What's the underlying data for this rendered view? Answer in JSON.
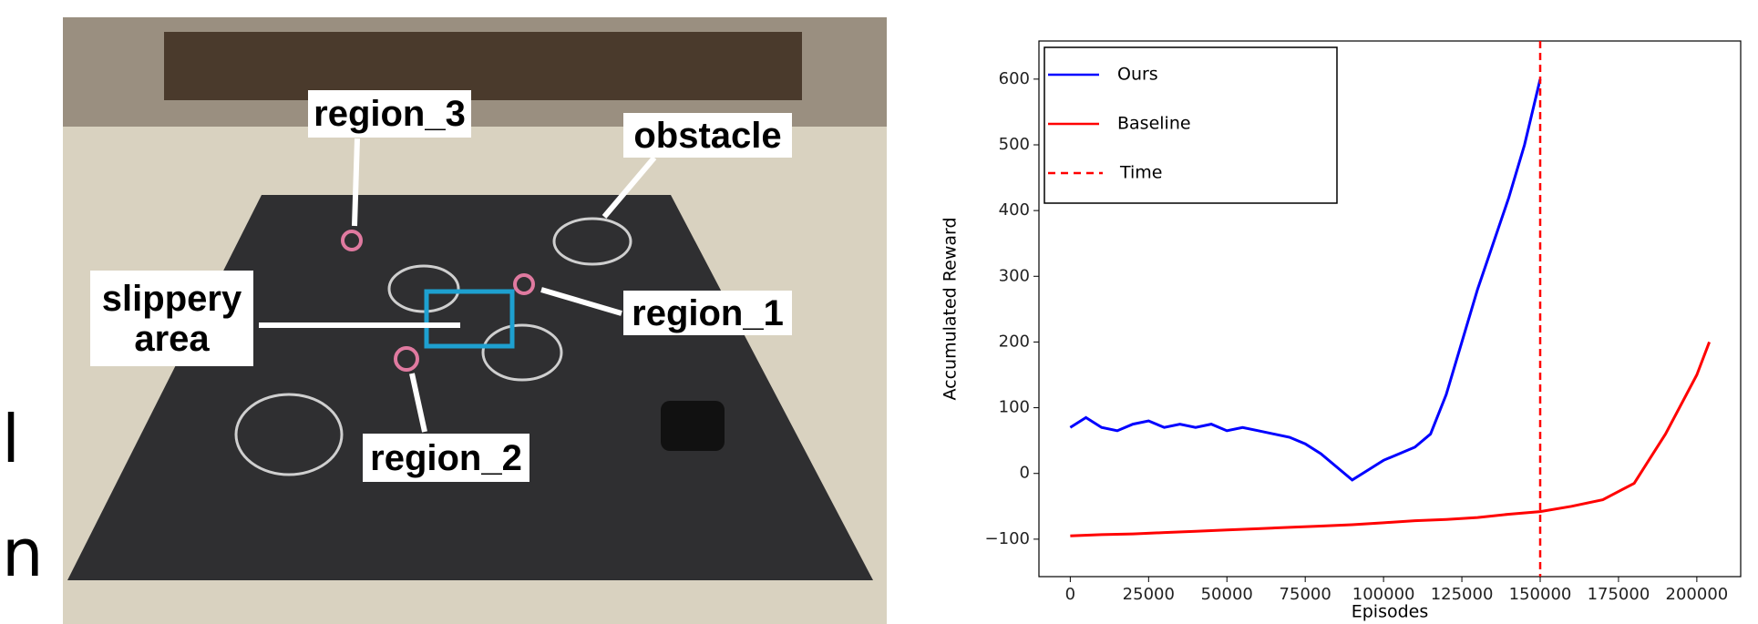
{
  "photo": {
    "labels": [
      "region_3",
      "obstacle",
      "slippery area",
      "region_1",
      "region_2"
    ],
    "edge_text": [
      "l",
      "n"
    ]
  },
  "chart_data": {
    "type": "line",
    "xlabel": "Episodes",
    "ylabel": "Accumulated Reward",
    "xlim": [
      -10000,
      214000
    ],
    "ylim": [
      -157,
      658
    ],
    "xticks": [
      0,
      25000,
      50000,
      75000,
      100000,
      125000,
      150000,
      175000,
      200000
    ],
    "yticks": [
      {
        "value": -100,
        "label": "−100"
      },
      0,
      100,
      200,
      300,
      400,
      500,
      600
    ],
    "legend": "upper left",
    "series": [
      {
        "name": "Ours",
        "color": "#0000ff",
        "x": [
          0,
          5000,
          10000,
          15000,
          20000,
          25000,
          30000,
          35000,
          40000,
          45000,
          50000,
          55000,
          60000,
          65000,
          70000,
          75000,
          80000,
          85000,
          90000,
          95000,
          100000,
          105000,
          110000,
          115000,
          120000,
          125000,
          130000,
          135000,
          140000,
          145000,
          150000
        ],
        "values": [
          70,
          85,
          70,
          65,
          75,
          80,
          70,
          75,
          70,
          75,
          65,
          70,
          65,
          60,
          55,
          45,
          30,
          10,
          -10,
          5,
          20,
          30,
          40,
          60,
          120,
          200,
          280,
          350,
          420,
          500,
          600
        ]
      },
      {
        "name": "Baseline",
        "color": "#ff0000",
        "x": [
          0,
          10000,
          20000,
          30000,
          40000,
          50000,
          60000,
          70000,
          80000,
          90000,
          100000,
          110000,
          120000,
          130000,
          140000,
          150000,
          160000,
          170000,
          180000,
          190000,
          200000,
          204000
        ],
        "values": [
          -95,
          -93,
          -92,
          -90,
          -88,
          -86,
          -84,
          -82,
          -80,
          -78,
          -75,
          -72,
          -70,
          -67,
          -62,
          -58,
          -50,
          -40,
          -15,
          60,
          150,
          200
        ]
      }
    ],
    "vline": {
      "name": "Time",
      "x": 150000,
      "color": "#ff0000"
    }
  }
}
